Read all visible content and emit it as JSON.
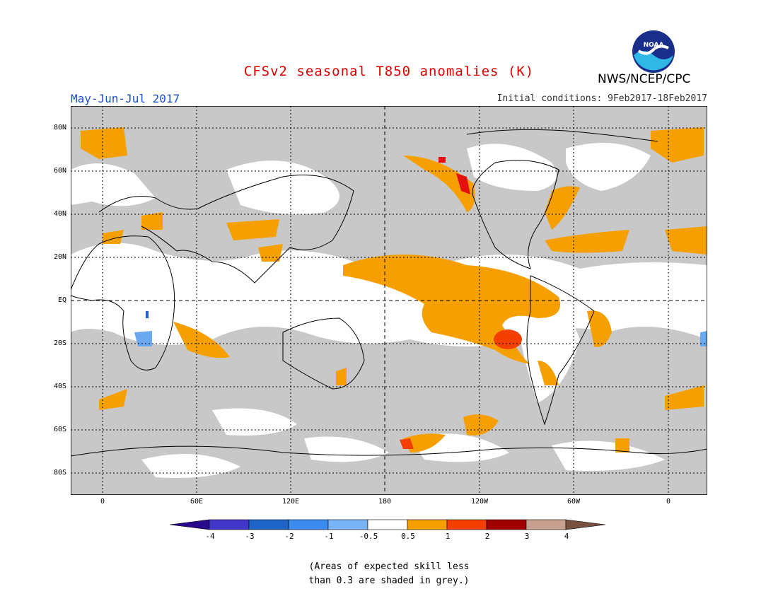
{
  "header": {
    "title": "CFSv2 seasonal T850 anomalies (K)",
    "season": "May-Jun-Jul 2017",
    "initial_conditions": "Initial conditions: 9Feb2017-18Feb2017",
    "organization": "NWS/NCEP/CPC",
    "logo_text": "NOAA"
  },
  "map": {
    "lat_labels": [
      "80N",
      "60N",
      "40N",
      "20N",
      "EQ",
      "20S",
      "40S",
      "60S",
      "80S"
    ],
    "lon_labels": [
      "0",
      "60E",
      "120E",
      "180",
      "120W",
      "60W",
      "0"
    ],
    "colors": {
      "grey": "#c8c8c8",
      "orange": "#f5a000",
      "red_orange": "#f34000",
      "red": "#e41010",
      "light_blue": "#6aa8f0",
      "blue": "#1e64c8"
    }
  },
  "colorbar": {
    "labels": [
      "-4",
      "-3",
      "-2",
      "-1",
      "-0.5",
      "0.5",
      "1",
      "2",
      "3",
      "4"
    ],
    "colors": [
      "#2a0a8c",
      "#4236c8",
      "#1e64c8",
      "#3c8cf0",
      "#78b4f5",
      "#ffffff",
      "#f5a000",
      "#f34000",
      "#a00000",
      "#c8a090",
      "#785040"
    ]
  },
  "footnote": {
    "line1": "(Areas of expected skill less",
    "line2": "than 0.3 are shaded in grey.)"
  }
}
